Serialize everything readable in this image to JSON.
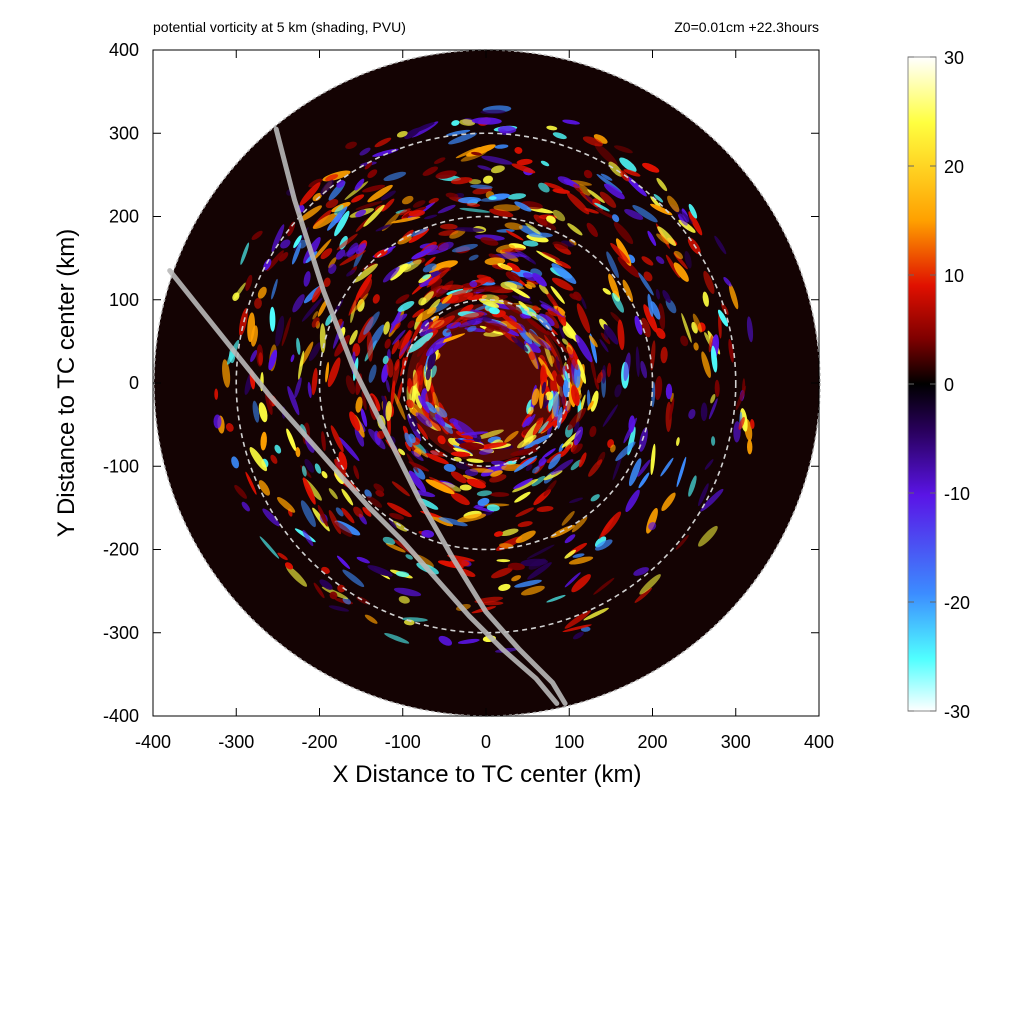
{
  "chart_data": {
    "type": "heatmap",
    "title": "potential vorticity at 5 km (shading, PVU)",
    "subtitle": "Z0=0.01cm  +22.3hours",
    "xlabel": "X Distance to TC center (km)",
    "ylabel": "Y Distance to TC center (km)",
    "xlim": [
      -400,
      400
    ],
    "ylim": [
      -400,
      400
    ],
    "x_ticks": [
      -400,
      -300,
      -200,
      -100,
      0,
      100,
      200,
      300,
      400
    ],
    "y_ticks": [
      -400,
      -300,
      -200,
      -100,
      0,
      100,
      200,
      300,
      400
    ],
    "domain_radius_km": 400,
    "range_rings_km": [
      100,
      200,
      300
    ],
    "colorbar": {
      "range": [
        -30,
        30
      ],
      "ticks": [
        30,
        20,
        10,
        0,
        -10,
        -20,
        -30
      ],
      "colors": [
        "#ffffff",
        "#ffff40",
        "#ffa000",
        "#e01000",
        "#800000",
        "#000000",
        "#28005a",
        "#5a14e6",
        "#3c8cff",
        "#50ffff",
        "#ffffff"
      ]
    },
    "tracks": [
      {
        "x": [
          -252,
          -230,
          -195,
          -160,
          -120,
          -80,
          -40,
          0,
          40,
          80,
          95
        ],
        "y": [
          305,
          220,
          110,
          20,
          -60,
          -140,
          -210,
          -275,
          -320,
          -360,
          -385
        ]
      },
      {
        "x": [
          -380,
          -340,
          -300,
          -260,
          -220,
          -180,
          -140,
          -100,
          -60,
          -20,
          20,
          60,
          85
        ],
        "y": [
          135,
          85,
          35,
          -15,
          -60,
          -105,
          -150,
          -190,
          -235,
          -280,
          -320,
          -355,
          -385
        ]
      }
    ]
  }
}
